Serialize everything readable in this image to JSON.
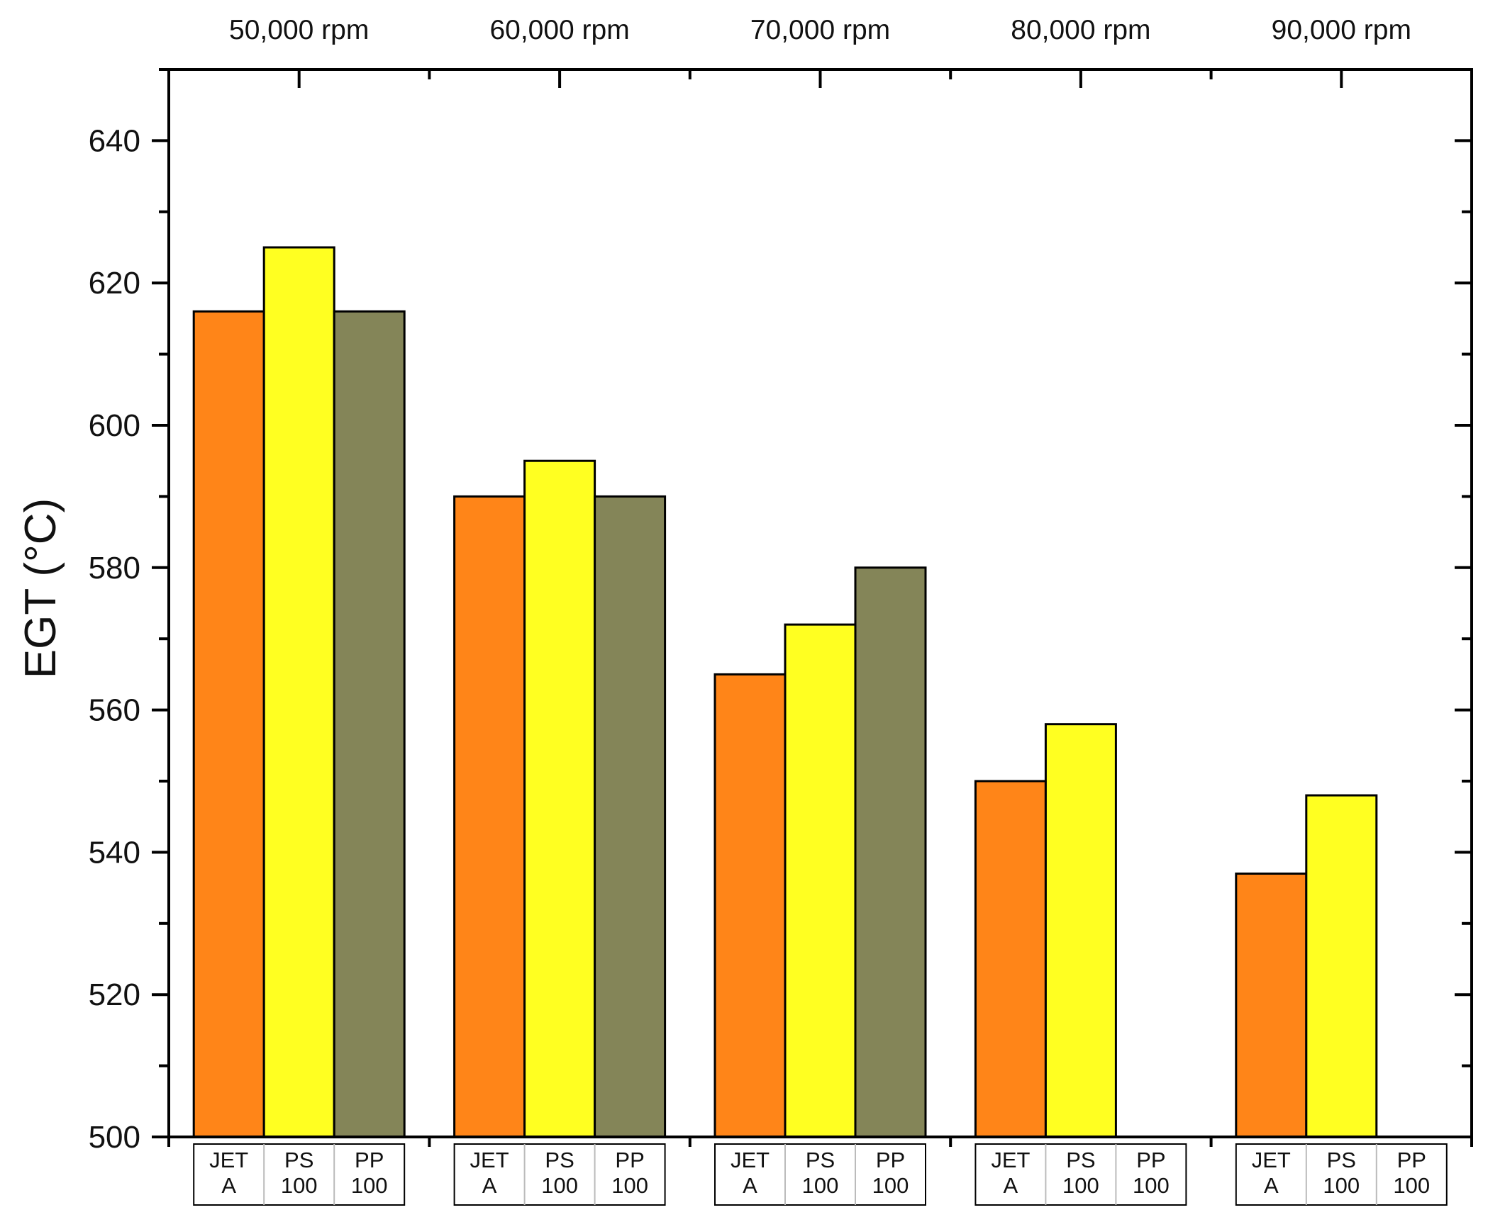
{
  "chart_data": {
    "type": "bar",
    "title": "",
    "ylabel": "EGT (°C)",
    "xlabel": "",
    "ylim": [
      500,
      650
    ],
    "yticks": [
      500,
      520,
      540,
      560,
      580,
      600,
      620,
      640
    ],
    "ytick_labels": [
      "500",
      "520",
      "540",
      "560",
      "580",
      "600",
      "620",
      "640"
    ],
    "grid": false,
    "categories": [
      "50,000 rpm",
      "60,000 rpm",
      "70,000 rpm",
      "80,000 rpm",
      "90,000 rpm"
    ],
    "series": [
      {
        "name": "JET A",
        "label_lines": [
          "JET",
          "A"
        ],
        "color": "#FF8518",
        "values": [
          616,
          590,
          565,
          550,
          537
        ]
      },
      {
        "name": "PS 100",
        "label_lines": [
          "PS",
          "100"
        ],
        "color": "#FFFF21",
        "values": [
          625,
          595,
          572,
          558,
          548
        ]
      },
      {
        "name": "PP 100",
        "label_lines": [
          "PP",
          "100"
        ],
        "color": "#848558",
        "values": [
          616,
          590,
          580,
          null,
          null
        ]
      }
    ]
  }
}
